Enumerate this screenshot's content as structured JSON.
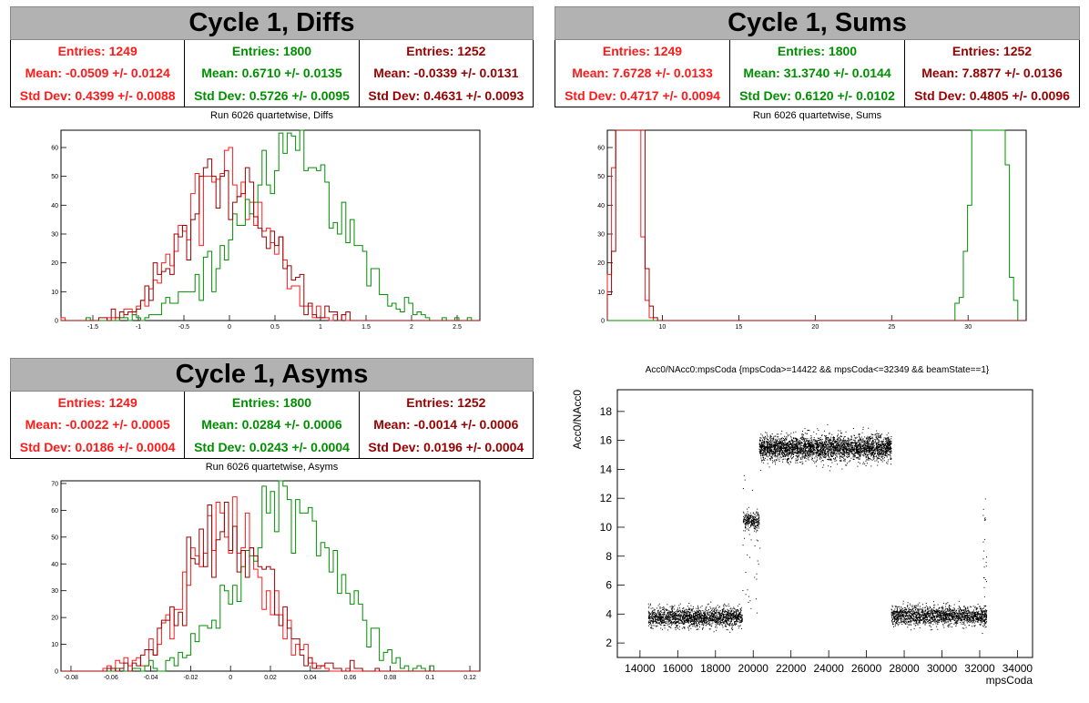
{
  "colors": {
    "red": "#ff1a1a",
    "green": "#008f00",
    "darkred": "#990000",
    "black": "#000000"
  },
  "panels": [
    {
      "banner": "Cycle 1, Diffs",
      "stats": [
        {
          "entries": "Entries: 1249",
          "mean": "Mean: -0.0509 +/- 0.0124",
          "std": "Std Dev: 0.4399 +/- 0.0088",
          "color": "#ff1a1a"
        },
        {
          "entries": "Entries: 1800",
          "mean": "Mean: 0.6710 +/- 0.0135",
          "std": "Std Dev: 0.5726 +/- 0.0095",
          "color": "#008f00"
        },
        {
          "entries": "Entries: 1252",
          "mean": "Mean: -0.0339 +/- 0.0131",
          "std": "Std Dev: 0.4631 +/- 0.0093",
          "color": "#990000"
        }
      ],
      "subtitle": "Run 6026 quartetwise, Diffs"
    },
    {
      "banner": "Cycle 1, Sums",
      "stats": [
        {
          "entries": "Entries: 1249",
          "mean": "Mean: 7.6728 +/- 0.0133",
          "std": "Std Dev: 0.4717 +/- 0.0094",
          "color": "#ff1a1a"
        },
        {
          "entries": "Entries: 1800",
          "mean": "Mean: 31.3740 +/- 0.0144",
          "std": "Std Dev: 0.6120 +/- 0.0102",
          "color": "#008f00"
        },
        {
          "entries": "Entries: 1252",
          "mean": "Mean: 7.8877 +/- 0.0136",
          "std": "Std Dev: 0.4805 +/- 0.0096",
          "color": "#990000"
        }
      ],
      "subtitle": "Run 6026 quartetwise, Sums"
    },
    {
      "banner": "Cycle 1, Asyms",
      "stats": [
        {
          "entries": "Entries: 1249",
          "mean": "Mean: -0.0022 +/- 0.0005",
          "std": "Std Dev: 0.0186 +/- 0.0004",
          "color": "#ff1a1a"
        },
        {
          "entries": "Entries: 1800",
          "mean": "Mean: 0.0284 +/- 0.0006",
          "std": "Std Dev: 0.0243 +/- 0.0004",
          "color": "#008f00"
        },
        {
          "entries": "Entries: 1252",
          "mean": "Mean: -0.0014 +/- 0.0006",
          "std": "Std Dev: 0.0196 +/- 0.0004",
          "color": "#990000"
        }
      ],
      "subtitle": "Run 6026 quartetwise, Asyms"
    }
  ],
  "chart_data": [
    {
      "type": "histogram",
      "id": "diffs",
      "xlim": [
        -1.85,
        2.75
      ],
      "ylim": [
        0,
        66
      ],
      "xticks": [
        -1.5,
        -1,
        -0.5,
        0,
        0.5,
        1,
        1.5,
        2,
        2.5
      ],
      "yticks": [
        0,
        10,
        20,
        30,
        40,
        50,
        60
      ],
      "series": [
        {
          "color": "#ff1a1a",
          "entries": 1249,
          "mean": -0.0509,
          "std": 0.4399
        },
        {
          "color": "#008f00",
          "entries": 1800,
          "mean": 0.671,
          "std": 0.5726
        },
        {
          "color": "#990000",
          "entries": 1252,
          "mean": -0.0339,
          "std": 0.4631
        }
      ]
    },
    {
      "type": "histogram",
      "id": "sums",
      "xlim": [
        6.4,
        33.8
      ],
      "ylim": [
        0,
        66
      ],
      "xticks": [
        10,
        15,
        20,
        25,
        30
      ],
      "yticks": [
        0,
        10,
        20,
        30,
        40,
        50,
        60
      ],
      "series": [
        {
          "color": "#ff1a1a",
          "entries": 1249,
          "mean": 7.6728,
          "std": 0.4717
        },
        {
          "color": "#008f00",
          "entries": 1800,
          "mean": 31.374,
          "std": 0.612
        },
        {
          "color": "#990000",
          "entries": 1252,
          "mean": 7.8877,
          "std": 0.4805
        }
      ]
    },
    {
      "type": "histogram",
      "id": "asyms",
      "xlim": [
        -0.085,
        0.125
      ],
      "ylim": [
        0,
        71
      ],
      "xticks": [
        -0.08,
        -0.06,
        -0.04,
        -0.02,
        0,
        0.02,
        0.04,
        0.06,
        0.08,
        0.1,
        0.12
      ],
      "yticks": [
        0,
        10,
        20,
        30,
        40,
        50,
        60,
        70
      ],
      "series": [
        {
          "color": "#ff1a1a",
          "entries": 1249,
          "mean": -0.0022,
          "std": 0.0186
        },
        {
          "color": "#008f00",
          "entries": 1800,
          "mean": 0.0284,
          "std": 0.0243
        },
        {
          "color": "#990000",
          "entries": 1252,
          "mean": -0.0014,
          "std": 0.0196
        }
      ]
    },
    {
      "type": "scatter",
      "id": "scatter",
      "title": "Acc0/NAcc0:mpsCoda {mpsCoda>=14422 && mpsCoda<=32349 && beamState==1}",
      "xlabel": "mpsCoda",
      "ylabel": "Acc0/NAcc0",
      "xlim": [
        12800,
        34800
      ],
      "ylim": [
        1,
        19.5
      ],
      "xticks": [
        14000,
        16000,
        18000,
        20000,
        22000,
        24000,
        26000,
        28000,
        30000,
        32000,
        34000
      ],
      "yticks": [
        2,
        4,
        6,
        8,
        10,
        12,
        14,
        16,
        18
      ],
      "clusters": [
        {
          "x": [
            14422,
            19400
          ],
          "y_center": 3.8,
          "y_spread": 0.55,
          "points": 1800
        },
        {
          "x": [
            19450,
            20300
          ],
          "y_center": 10.5,
          "y_spread": 0.5,
          "points": 260
        },
        {
          "x": [
            20300,
            27300
          ],
          "y_center": 15.5,
          "y_spread": 0.7,
          "points": 3400
        },
        {
          "x": [
            27300,
            32349
          ],
          "y_center": 3.9,
          "y_spread": 0.55,
          "points": 1800
        }
      ]
    }
  ]
}
